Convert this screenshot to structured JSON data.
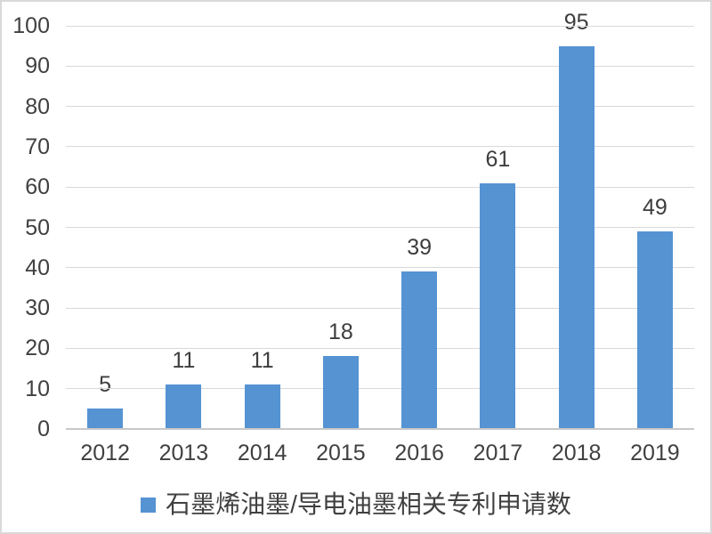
{
  "chart_data": {
    "type": "bar",
    "categories": [
      "2012",
      "2013",
      "2014",
      "2015",
      "2016",
      "2017",
      "2018",
      "2019"
    ],
    "values": [
      5,
      11,
      11,
      18,
      39,
      61,
      95,
      49
    ],
    "series_name": "石墨烯油墨/导电油墨相关专利申请数",
    "title": "",
    "xlabel": "",
    "ylabel": "",
    "ylim": [
      0,
      100
    ],
    "ytick_step": 10,
    "ytick_labels": [
      "0",
      "10",
      "20",
      "30",
      "40",
      "50",
      "60",
      "70",
      "80",
      "90",
      "100"
    ],
    "grid": true,
    "data_labels_shown": true,
    "legend_position": "bottom",
    "bar_color": "#5593d3",
    "text_color": "#404040",
    "gridline_color": "#d9d9d9"
  },
  "legend": {
    "marker_color": "#5593d3",
    "label": "石墨烯油墨/导电油墨相关专利申请数"
  }
}
